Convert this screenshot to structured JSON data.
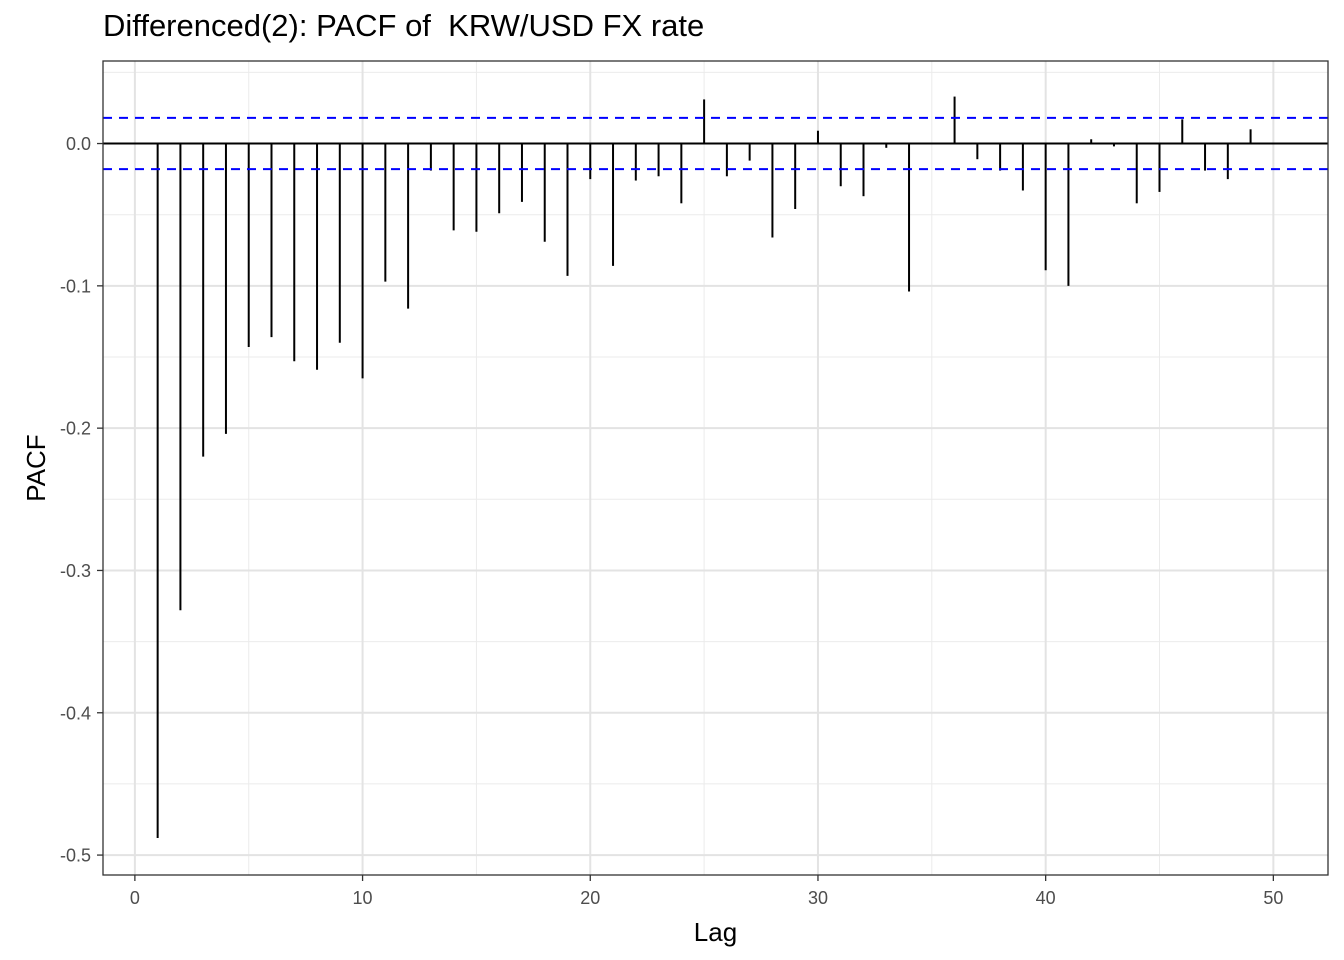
{
  "chart_data": {
    "type": "bar",
    "title": "Differenced(2): PACF of  KRW/USD FX rate",
    "xlabel": "Lag",
    "ylabel": "PACF",
    "xlim": [
      -1.4,
      52.4
    ],
    "ylim": [
      -0.514,
      0.058
    ],
    "x_ticks": [
      0,
      10,
      20,
      30,
      40,
      50
    ],
    "x_tick_labels": [
      "0",
      "10",
      "20",
      "30",
      "40",
      "50"
    ],
    "y_ticks": [
      -0.5,
      -0.4,
      -0.3,
      -0.2,
      -0.1,
      0.0
    ],
    "y_tick_labels": [
      "-0.5",
      "-0.4",
      "-0.3",
      "-0.2",
      "-0.1",
      "0.0"
    ],
    "grid": true,
    "confidence_bound": 0.018,
    "confidence_color": "#0000ff",
    "bar_color": "#000000",
    "lags": [
      1,
      2,
      3,
      4,
      5,
      6,
      7,
      8,
      9,
      10,
      11,
      12,
      13,
      14,
      15,
      16,
      17,
      18,
      19,
      20,
      21,
      22,
      23,
      24,
      25,
      26,
      27,
      28,
      29,
      30,
      31,
      32,
      33,
      34,
      35,
      36,
      37,
      38,
      39,
      40,
      41,
      42,
      43,
      44,
      45,
      46,
      47,
      48,
      49,
      50
    ],
    "values": [
      -0.488,
      -0.328,
      -0.22,
      -0.204,
      -0.143,
      -0.136,
      -0.153,
      -0.159,
      -0.14,
      -0.165,
      -0.097,
      -0.116,
      -0.019,
      -0.061,
      -0.062,
      -0.049,
      -0.041,
      -0.069,
      -0.093,
      -0.025,
      -0.086,
      -0.026,
      -0.023,
      -0.042,
      0.031,
      -0.023,
      -0.012,
      -0.066,
      -0.046,
      0.009,
      -0.03,
      -0.037,
      -0.003,
      -0.104,
      0.0,
      0.033,
      -0.011,
      -0.019,
      -0.033,
      -0.089,
      -0.1,
      0.003,
      -0.002,
      -0.042,
      -0.034,
      0.017,
      -0.019,
      -0.025,
      0.01,
      0.0
    ]
  }
}
